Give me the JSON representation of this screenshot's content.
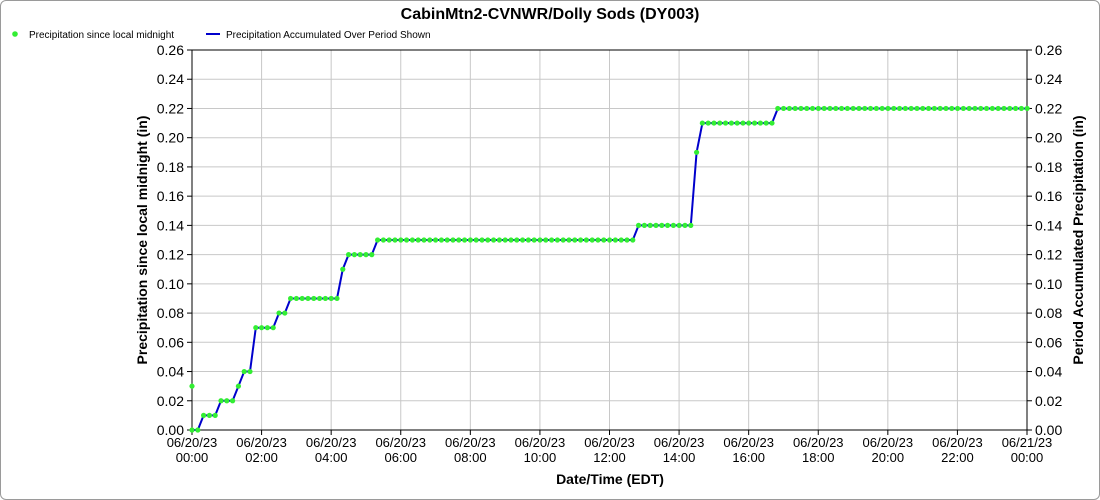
{
  "chart_data": {
    "type": "line",
    "title": "CabinMtn2-CVNWR/Dolly Sods (DY003)",
    "xlabel": "Date/Time (EDT)",
    "ylabel": "Precipitation since local midnight (in)",
    "y2label": "Period Accumulated Precipitation (in)",
    "ylim": [
      0,
      0.26
    ],
    "y_ticks": [
      "0.00",
      "0.02",
      "0.04",
      "0.06",
      "0.08",
      "0.10",
      "0.12",
      "0.14",
      "0.16",
      "0.18",
      "0.20",
      "0.22",
      "0.24",
      "0.26"
    ],
    "x_range_hours": [
      0,
      24
    ],
    "x_ticks": [
      {
        "date": "06/20/23",
        "time": "00:00"
      },
      {
        "date": "06/20/23",
        "time": "02:00"
      },
      {
        "date": "06/20/23",
        "time": "04:00"
      },
      {
        "date": "06/20/23",
        "time": "06:00"
      },
      {
        "date": "06/20/23",
        "time": "08:00"
      },
      {
        "date": "06/20/23",
        "time": "10:00"
      },
      {
        "date": "06/20/23",
        "time": "12:00"
      },
      {
        "date": "06/20/23",
        "time": "14:00"
      },
      {
        "date": "06/20/23",
        "time": "16:00"
      },
      {
        "date": "06/20/23",
        "time": "18:00"
      },
      {
        "date": "06/20/23",
        "time": "20:00"
      },
      {
        "date": "06/20/23",
        "time": "22:00"
      },
      {
        "date": "06/21/23",
        "time": "00:00"
      }
    ],
    "grid": true,
    "legend_placement": "top-left",
    "interval_hours": 0.1667,
    "series": [
      {
        "name": "Precipitation since local midnight",
        "kind": "points",
        "color": "#33ee33",
        "extra_points": [
          {
            "x": 0,
            "y": 0.03
          }
        ],
        "steps": [
          {
            "x": 0,
            "y": 0.0
          },
          {
            "x": 0.17,
            "y": 0.01
          },
          {
            "x": 0.83,
            "y": 0.02
          },
          {
            "x": 1.17,
            "y": 0.03
          },
          {
            "x": 1.5,
            "y": 0.04
          },
          {
            "x": 1.67,
            "y": 0.06
          },
          {
            "x": 1.83,
            "y": 0.07
          },
          {
            "x": 2.5,
            "y": 0.08
          },
          {
            "x": 2.83,
            "y": 0.09
          },
          {
            "x": 4.33,
            "y": 0.11
          },
          {
            "x": 4.5,
            "y": 0.12
          },
          {
            "x": 5.33,
            "y": 0.13
          },
          {
            "x": 12.83,
            "y": 0.14
          },
          {
            "x": 14.5,
            "y": 0.19
          },
          {
            "x": 14.67,
            "y": 0.21
          },
          {
            "x": 16.83,
            "y": 0.22
          }
        ]
      },
      {
        "name": "Precipitation Accumulated Over Period Shown",
        "kind": "line",
        "color": "#0000cc"
      }
    ]
  }
}
